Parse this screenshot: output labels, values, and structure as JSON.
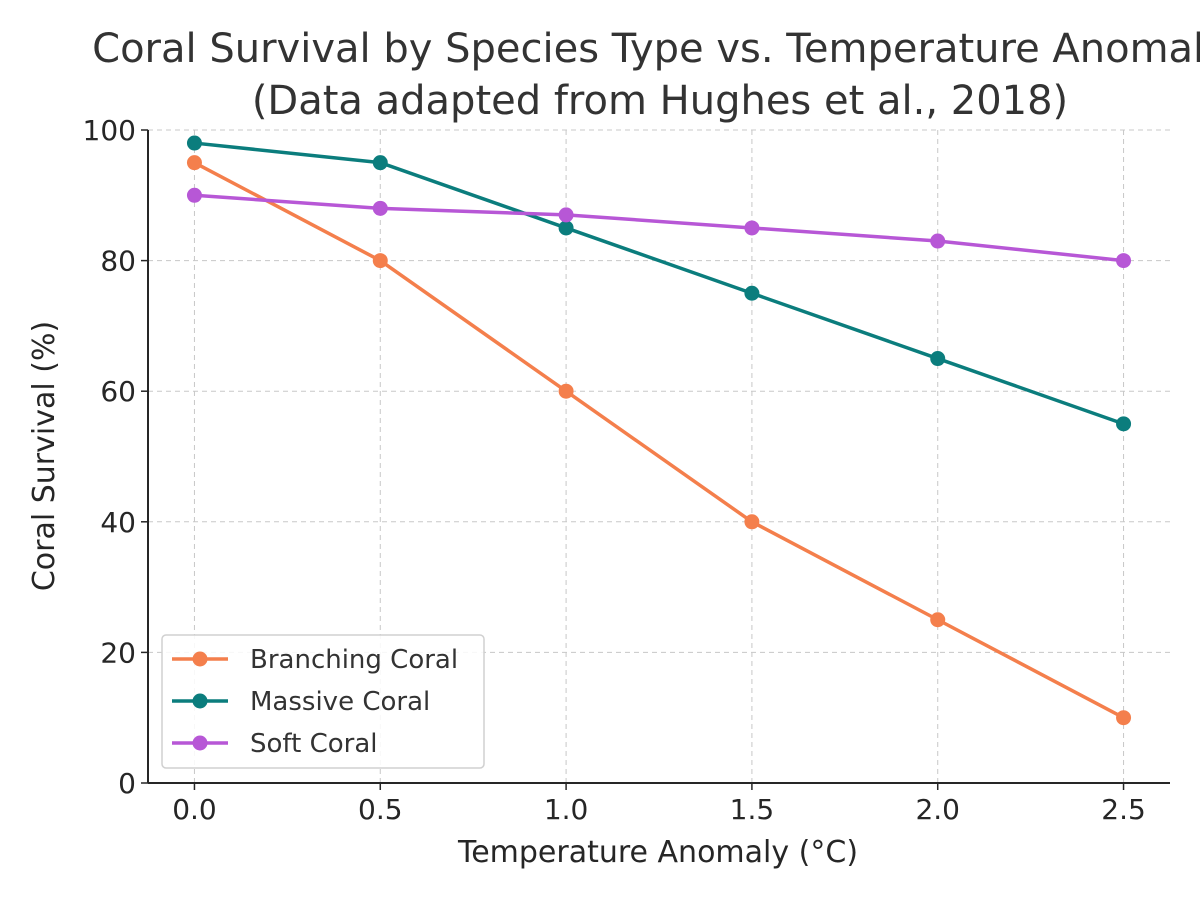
{
  "chart_data": {
    "type": "line",
    "title": "Coral Survival by Species Type vs. Temperature Anomaly",
    "subtitle": "(Data adapted from Hughes et al., 2018)",
    "xlabel": "Temperature Anomaly (°C)",
    "ylabel": "Coral Survival (%)",
    "x": [
      0.0,
      0.5,
      1.0,
      1.5,
      2.0,
      2.5
    ],
    "x_tick_labels": [
      "0.0",
      "0.5",
      "1.0",
      "1.5",
      "2.0",
      "2.5"
    ],
    "y_ticks": [
      0,
      20,
      40,
      60,
      80,
      100
    ],
    "y_tick_labels": [
      "0",
      "20",
      "40",
      "60",
      "80",
      "100"
    ],
    "xlim": [
      -0.125,
      2.625
    ],
    "ylim": [
      0,
      100
    ],
    "grid": true,
    "legend_position": "lower-left",
    "series": [
      {
        "name": "Branching Coral",
        "color": "#f47f4c",
        "values": [
          95,
          80,
          60,
          40,
          25,
          10
        ]
      },
      {
        "name": "Massive Coral",
        "color": "#0b7d7d",
        "values": [
          98,
          95,
          85,
          75,
          65,
          55
        ]
      },
      {
        "name": "Soft Coral",
        "color": "#b757d6",
        "values": [
          90,
          88,
          87,
          85,
          83,
          80
        ]
      }
    ]
  }
}
